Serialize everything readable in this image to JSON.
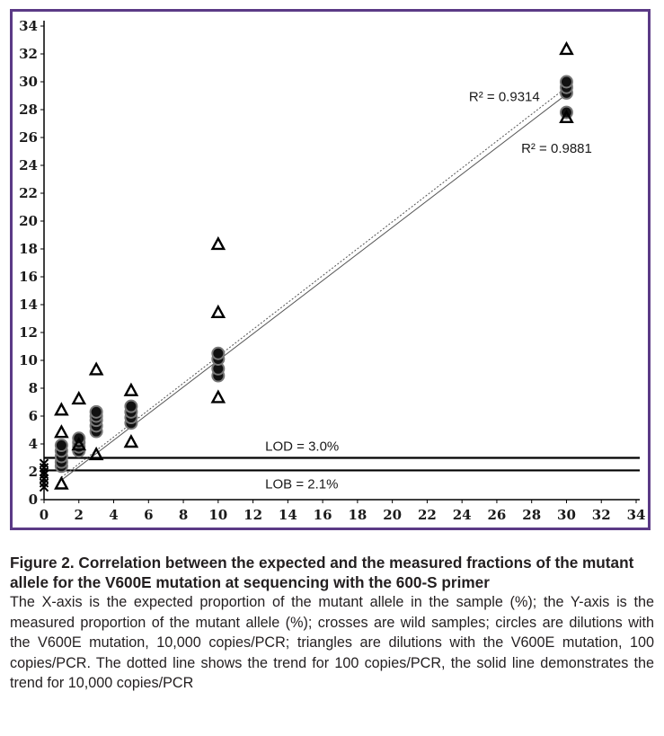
{
  "caption": {
    "title": "Figure 2. Correlation between the expected and the measured fractions of the mutant allele for the V600E mutation at sequencing with the 600-S primer",
    "body": "The X-axis is the expected proportion of the mutant allele in the sample (%); the Y-axis is the measured proportion of the mutant allele (%); crosses are wild samples; circles are dilutions with the V600E mutation, 10,000 copies/PCR; triangles are dilutions with the V600E mutation, 100 copies/PCR. The dotted line shows the trend for 100 copies/PCR, the solid line demonstrates the trend for 10,000 copies/PCR"
  },
  "chart_data": {
    "type": "scatter",
    "xlim": [
      0,
      34
    ],
    "ylim": [
      0,
      34
    ],
    "x_ticks": [
      0,
      2,
      4,
      6,
      8,
      10,
      12,
      14,
      16,
      18,
      20,
      22,
      24,
      26,
      28,
      30,
      32,
      34
    ],
    "y_ticks": [
      0,
      2,
      4,
      6,
      8,
      10,
      12,
      14,
      16,
      18,
      20,
      22,
      24,
      26,
      28,
      30,
      32,
      34
    ],
    "grid": false,
    "series": [
      {
        "marker": "cross",
        "points": [
          [
            0,
            1.5
          ],
          [
            0,
            1.8
          ],
          [
            0,
            2.0
          ],
          [
            0,
            2.3
          ],
          [
            0,
            2.6
          ],
          [
            0,
            1.2
          ],
          [
            0,
            0.9
          ]
        ]
      },
      {
        "marker": "circle",
        "points": [
          [
            1,
            2.4
          ],
          [
            1,
            2.7
          ],
          [
            1,
            3.1
          ],
          [
            1,
            3.5
          ],
          [
            1,
            3.9
          ],
          [
            2,
            3.5
          ],
          [
            2,
            3.8
          ],
          [
            2,
            4.1
          ],
          [
            2,
            4.4
          ],
          [
            3,
            4.9
          ],
          [
            3,
            5.3
          ],
          [
            3,
            5.7
          ],
          [
            3,
            6.0
          ],
          [
            3,
            6.3
          ],
          [
            5,
            5.5
          ],
          [
            5,
            5.9
          ],
          [
            5,
            6.3
          ],
          [
            5,
            6.7
          ],
          [
            10,
            8.9
          ],
          [
            10,
            9.4
          ],
          [
            10,
            10.1
          ],
          [
            10,
            10.5
          ],
          [
            30,
            27.8
          ],
          [
            30,
            29.2
          ],
          [
            30,
            29.6
          ],
          [
            30,
            30.0
          ]
        ]
      },
      {
        "marker": "triangle",
        "points": [
          [
            1,
            1.1
          ],
          [
            1,
            4.8
          ],
          [
            1,
            6.4
          ],
          [
            2,
            7.2
          ],
          [
            2,
            3.9
          ],
          [
            3,
            3.2
          ],
          [
            3,
            9.3
          ],
          [
            5,
            4.1
          ],
          [
            5,
            7.8
          ],
          [
            10,
            7.3
          ],
          [
            10,
            13.4
          ],
          [
            10,
            18.3
          ],
          [
            30,
            27.4
          ],
          [
            30,
            32.3
          ]
        ]
      }
    ],
    "trendlines": [
      {
        "style": "dotted",
        "from": [
          1,
          1.6
        ],
        "to": [
          30,
          29.6
        ],
        "r2_label": "R² = 0.9314"
      },
      {
        "style": "solid",
        "from": [
          1,
          1.4
        ],
        "to": [
          30,
          29.1
        ],
        "r2_label": "R² = 0.9881"
      }
    ],
    "hlines": [
      {
        "y": 3.0,
        "label": "LOD = 3.0%"
      },
      {
        "y": 2.1,
        "label": "LOB = 2.1%"
      }
    ]
  }
}
